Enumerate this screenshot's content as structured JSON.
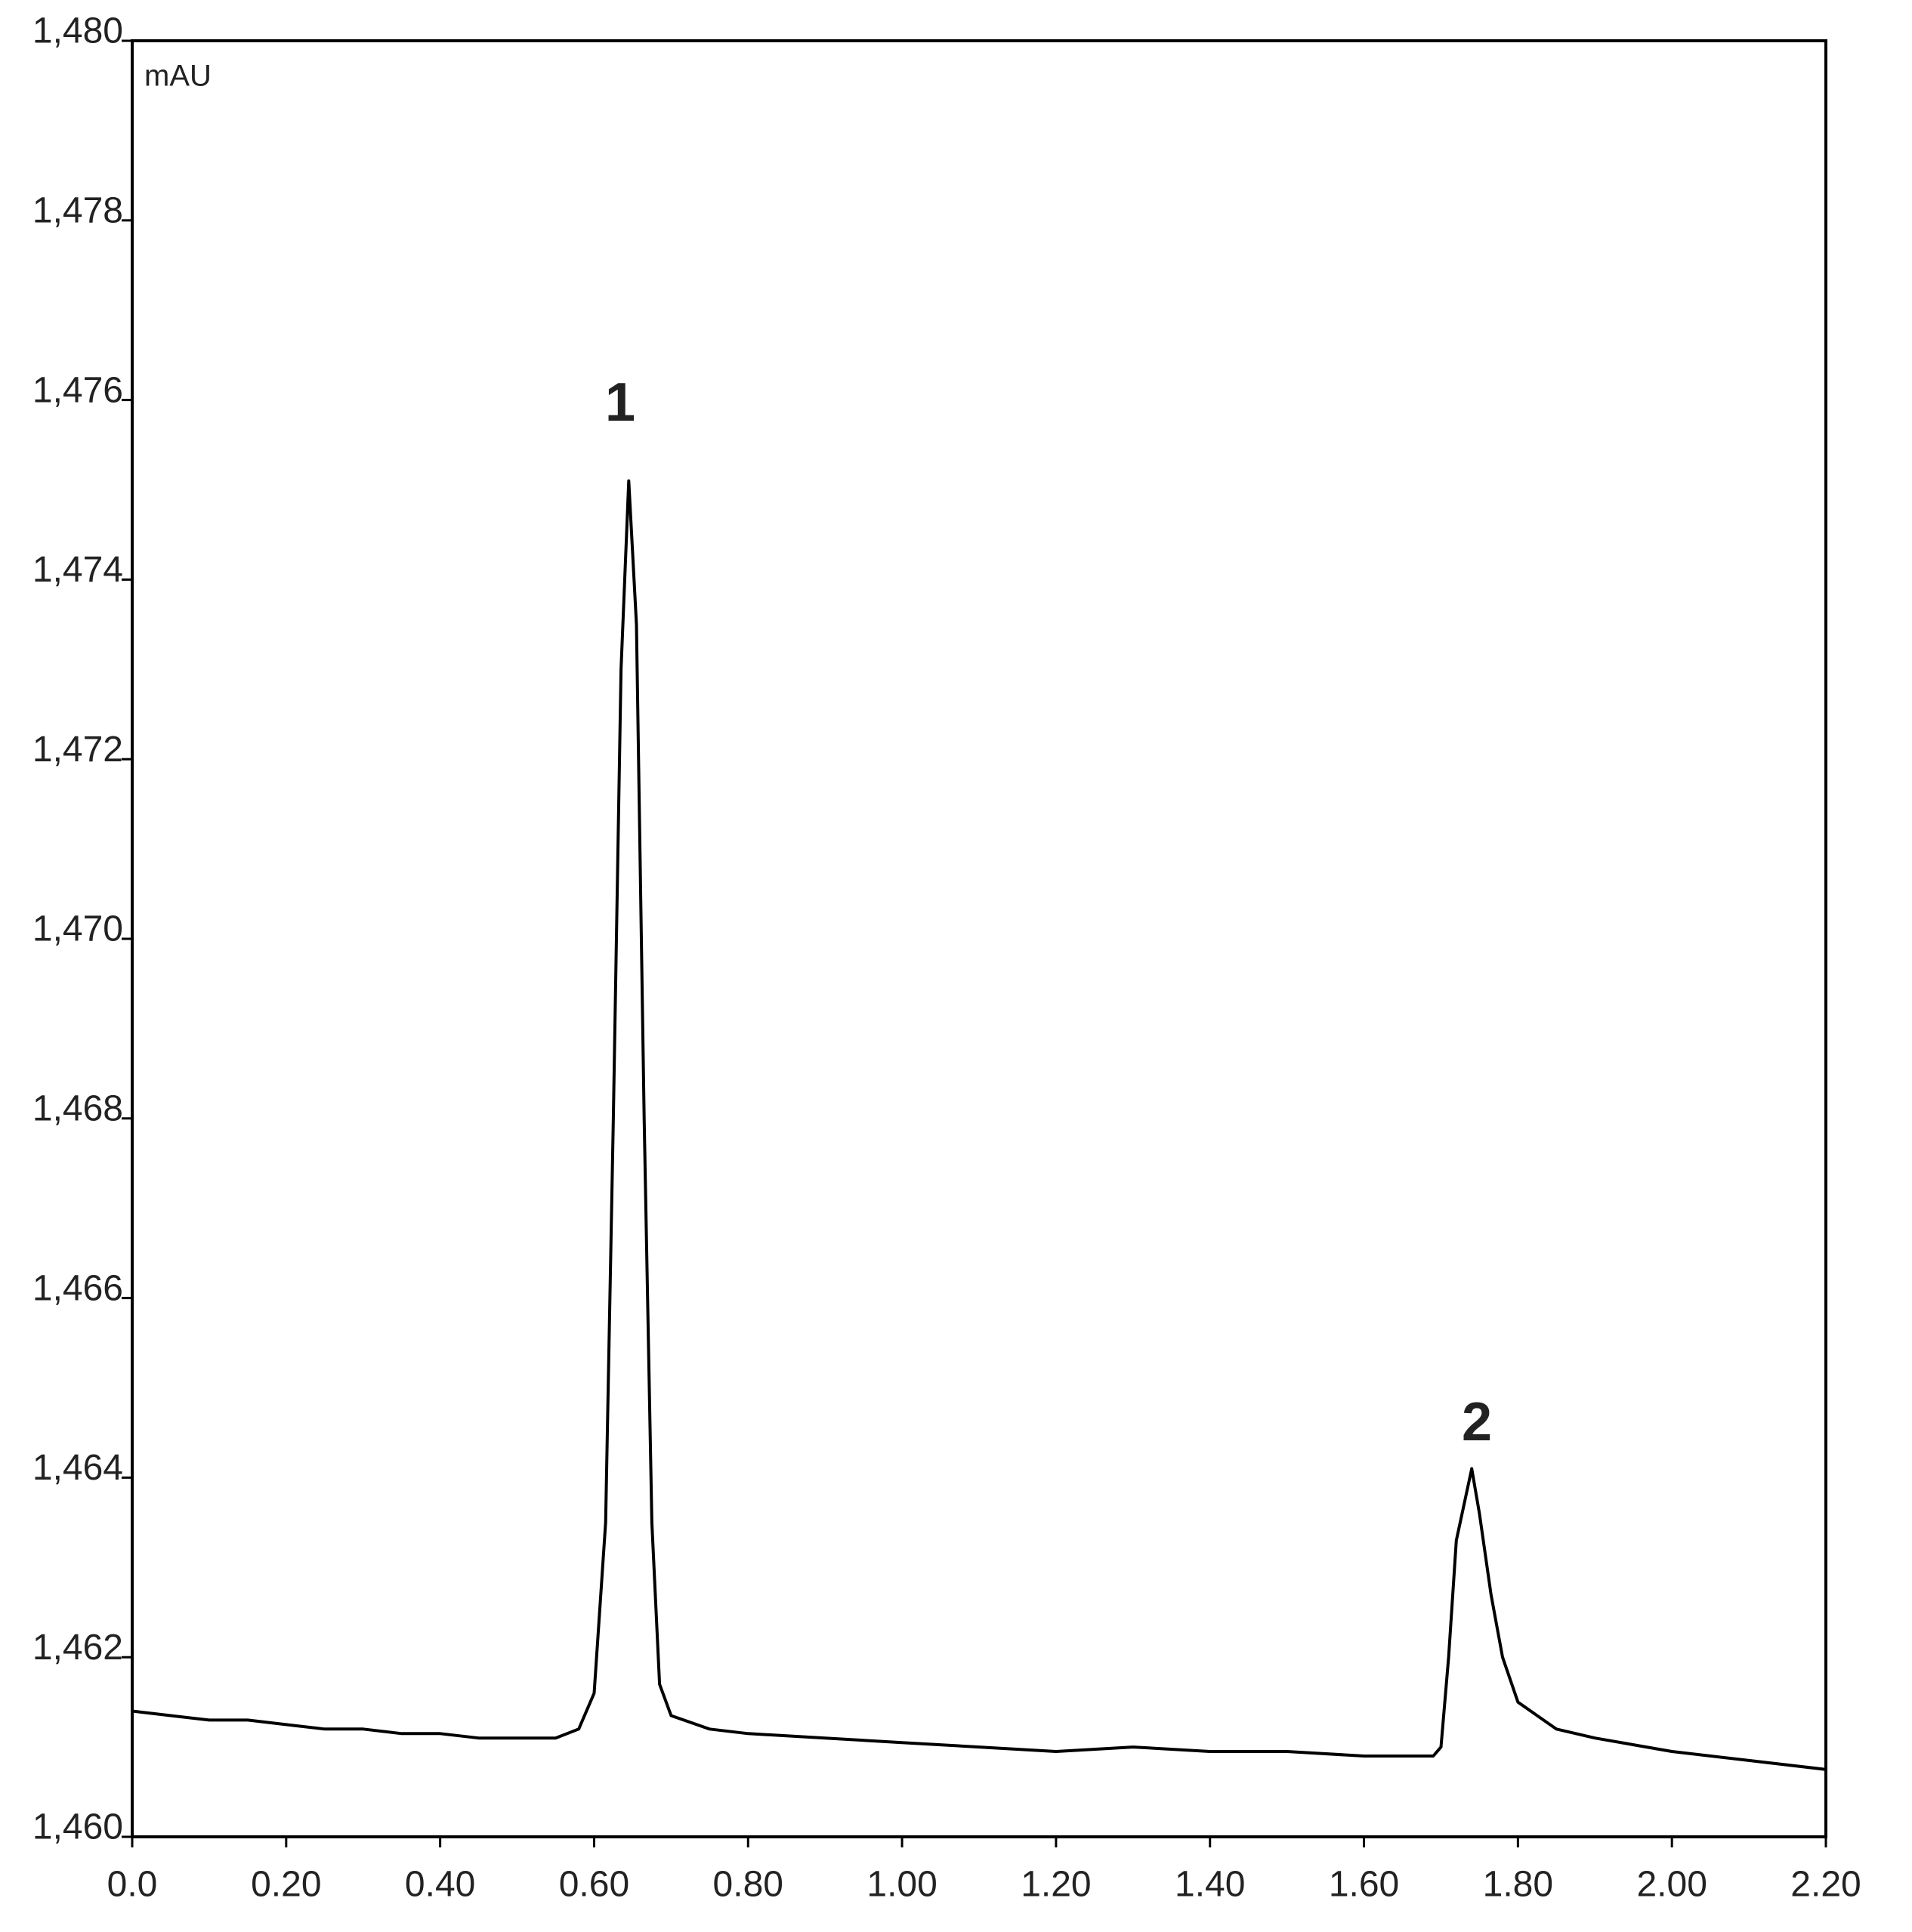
{
  "chart_data": {
    "type": "line",
    "y_label": "mAU",
    "color": "#000000",
    "x": [
      0,
      0.05,
      0.1,
      0.15,
      0.2,
      0.25,
      0.3,
      0.35,
      0.4,
      0.45,
      0.5,
      0.55,
      0.58,
      0.6,
      0.615,
      0.625,
      0.635,
      0.645,
      0.655,
      0.665,
      0.675,
      0.685,
      0.7,
      0.75,
      0.8,
      0.9,
      1.0,
      1.1,
      1.2,
      1.3,
      1.4,
      1.5,
      1.6,
      1.69,
      1.7,
      1.71,
      1.72,
      1.74,
      1.75,
      1.765,
      1.78,
      1.8,
      1.85,
      1.9,
      2.0,
      2.1,
      2.2
    ],
    "values": [
      1461.4,
      1461.35,
      1461.3,
      1461.3,
      1461.25,
      1461.2,
      1461.2,
      1461.15,
      1461.15,
      1461.1,
      1461.1,
      1461.1,
      1461.2,
      1461.6,
      1463.5,
      1468,
      1473,
      1475.1,
      1473.5,
      1468,
      1463.5,
      1461.7,
      1461.35,
      1461.2,
      1461.15,
      1461.1,
      1461.05,
      1461.0,
      1460.95,
      1461.0,
      1460.95,
      1460.95,
      1460.9,
      1460.9,
      1461.0,
      1462.0,
      1463.3,
      1464.1,
      1463.6,
      1462.7,
      1462.0,
      1461.5,
      1461.2,
      1461.1,
      1460.95,
      1460.85,
      1460.75
    ],
    "annotations": [
      "1",
      "2"
    ],
    "xlim": [
      0,
      2.2
    ],
    "xticks": [
      {
        "value": 0,
        "label": "0.0"
      },
      {
        "value": 0.2,
        "label": "0.20"
      },
      {
        "value": 0.4,
        "label": "0.40"
      },
      {
        "value": 0.6,
        "label": "0.60"
      },
      {
        "value": 0.8,
        "label": "0.80"
      },
      {
        "value": 1.0,
        "label": "1.00"
      },
      {
        "value": 1.2,
        "label": "1.20"
      },
      {
        "value": 1.4,
        "label": "1.40"
      },
      {
        "value": 1.6,
        "label": "1.60"
      },
      {
        "value": 1.8,
        "label": "1.80"
      },
      {
        "value": 2.0,
        "label": "2.00"
      },
      {
        "value": 2.2,
        "label": "2.20"
      }
    ],
    "ylim": [
      1460,
      1480
    ],
    "yticks": [
      {
        "value": 1460,
        "label": "1,460"
      },
      {
        "value": 1462,
        "label": "1,462"
      },
      {
        "value": 1464,
        "label": "1,464"
      },
      {
        "value": 1466,
        "label": "1,466"
      },
      {
        "value": 1468,
        "label": "1,468"
      },
      {
        "value": 1470,
        "label": "1,470"
      },
      {
        "value": 1472,
        "label": "1,472"
      },
      {
        "value": 1474,
        "label": "1,474"
      },
      {
        "value": 1476,
        "label": "1,476"
      },
      {
        "value": 1478,
        "label": "1,478"
      },
      {
        "value": 1480,
        "label": "1,480"
      }
    ]
  }
}
